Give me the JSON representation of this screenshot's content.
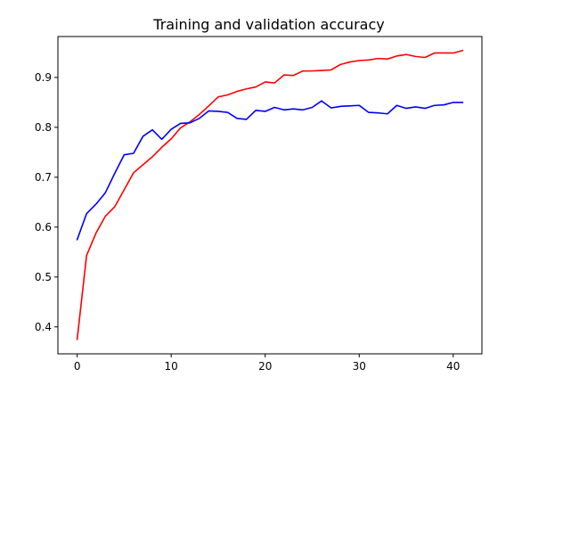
{
  "chart_data": {
    "type": "line",
    "title": "Training and validation accuracy",
    "xlabel": "",
    "ylabel": "",
    "xlim": [
      -2.05,
      43.05
    ],
    "ylim": [
      0.346,
      0.982
    ],
    "xticks": [
      0,
      10,
      20,
      30,
      40
    ],
    "yticks": [
      0.4,
      0.5,
      0.6,
      0.7,
      0.8,
      0.9
    ],
    "grid": false,
    "legend": "none",
    "x": [
      0,
      1,
      2,
      3,
      4,
      5,
      6,
      7,
      8,
      9,
      10,
      11,
      12,
      13,
      14,
      15,
      16,
      17,
      18,
      19,
      20,
      21,
      22,
      23,
      24,
      25,
      26,
      27,
      28,
      29,
      30,
      31,
      32,
      33,
      34,
      35,
      36,
      37,
      38,
      39,
      40,
      41
    ],
    "series": [
      {
        "color": "#ff0000",
        "values": [
          0.375,
          0.543,
          0.588,
          0.622,
          0.641,
          0.675,
          0.709,
          0.725,
          0.741,
          0.76,
          0.777,
          0.799,
          0.811,
          0.826,
          0.843,
          0.861,
          0.865,
          0.872,
          0.877,
          0.881,
          0.891,
          0.889,
          0.905,
          0.904,
          0.913,
          0.913,
          0.914,
          0.915,
          0.926,
          0.931,
          0.934,
          0.935,
          0.938,
          0.937,
          0.943,
          0.946,
          0.942,
          0.94,
          0.949,
          0.949,
          0.949,
          0.954
        ]
      },
      {
        "color": "#0000ff",
        "values": [
          0.575,
          0.627,
          0.646,
          0.669,
          0.708,
          0.745,
          0.748,
          0.782,
          0.795,
          0.776,
          0.796,
          0.808,
          0.809,
          0.818,
          0.833,
          0.832,
          0.83,
          0.818,
          0.816,
          0.834,
          0.832,
          0.84,
          0.835,
          0.837,
          0.835,
          0.84,
          0.853,
          0.839,
          0.842,
          0.843,
          0.844,
          0.83,
          0.829,
          0.827,
          0.844,
          0.838,
          0.841,
          0.838,
          0.844,
          0.845,
          0.85,
          0.85
        ]
      }
    ]
  }
}
